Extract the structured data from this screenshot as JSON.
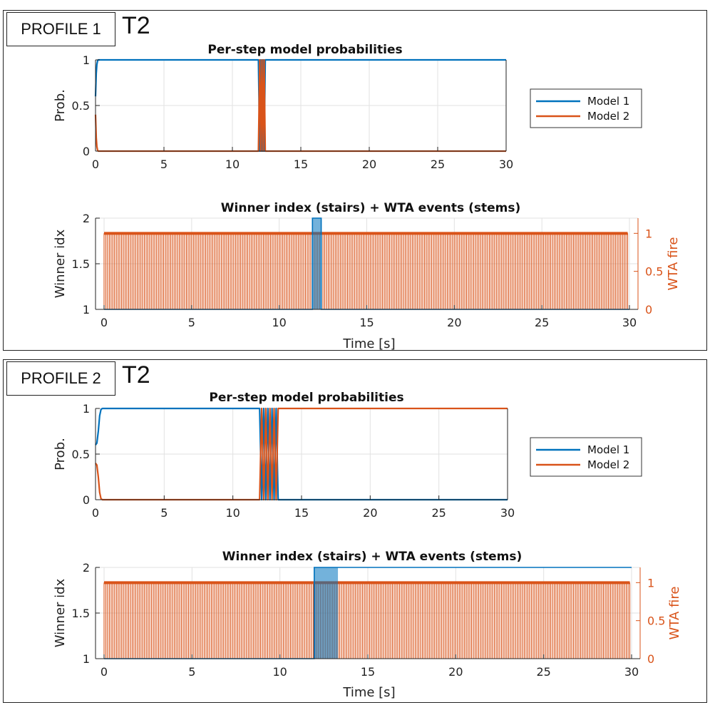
{
  "panels": [
    {
      "badge": "PROFILE 1",
      "tag": "T2"
    },
    {
      "badge": "PROFILE 2",
      "tag": "T2"
    }
  ],
  "colors": {
    "model1": "#0072bd",
    "model2": "#d95319",
    "grid": "#e2e2e2",
    "axis": "#222222",
    "overlap": "#6f6a7a"
  },
  "chart_data": [
    {
      "id": "p1-prob",
      "type": "line",
      "title": "Per-step model probabilities",
      "xlabel": "",
      "ylabel": "Prob.",
      "xlim": [
        0,
        30
      ],
      "ylim": [
        0,
        1
      ],
      "xticks": [
        0,
        5,
        10,
        15,
        20,
        25,
        30
      ],
      "yticks": [
        0,
        0.5,
        1
      ],
      "xtick_labels": [
        "0",
        "5",
        "10",
        "15",
        "20",
        "25",
        "30"
      ],
      "ytick_labels": [
        "0",
        "0.5",
        "1"
      ],
      "legend": [
        "Model 1",
        "Model 2"
      ],
      "legend_position": "right",
      "series": [
        {
          "name": "Model 1",
          "x": [
            0,
            0.05,
            0.1,
            0.15,
            0.2,
            0.3,
            11.9,
            12.0,
            12.08,
            12.16,
            12.24,
            12.32,
            12.4,
            30
          ],
          "y": [
            0.6,
            0.85,
            0.95,
            0.99,
            1,
            1,
            1,
            0,
            1,
            0,
            1,
            0,
            1,
            1
          ]
        },
        {
          "name": "Model 2",
          "x": [
            0,
            0.05,
            0.1,
            0.15,
            0.2,
            0.3,
            11.9,
            12.0,
            12.08,
            12.16,
            12.24,
            12.32,
            12.4,
            30
          ],
          "y": [
            0.4,
            0.15,
            0.05,
            0.01,
            0,
            0,
            0,
            1,
            0,
            1,
            0,
            1,
            0,
            0
          ]
        }
      ]
    },
    {
      "id": "p1-winner",
      "type": "stairs+stem",
      "title": "Winner index (stairs) + WTA events (stems)",
      "xlabel": "Time [s]",
      "ylabel": "Winner idx",
      "y2label": "WTA fire",
      "xlim": [
        0,
        30
      ],
      "ylim": [
        1,
        2
      ],
      "y2lim": [
        0,
        1.2
      ],
      "xticks": [
        0,
        5,
        10,
        15,
        20,
        25,
        30
      ],
      "yticks": [
        1,
        1.5,
        2
      ],
      "y2ticks": [
        0,
        0.5,
        1
      ],
      "xtick_labels": [
        "0",
        "5",
        "10",
        "15",
        "20",
        "25",
        "30"
      ],
      "ytick_labels": [
        "1",
        "1.5",
        "2"
      ],
      "y2tick_labels": [
        "0",
        "0.5",
        "1"
      ],
      "winner": {
        "x": [
          0,
          11.9,
          11.9,
          12.4,
          12.4,
          30
        ],
        "y": [
          1,
          1,
          2,
          2,
          1,
          1
        ]
      },
      "stems": {
        "start": 0,
        "end": 29.9,
        "step": 0.1,
        "value": 1
      }
    },
    {
      "id": "p2-prob",
      "type": "line",
      "title": "Per-step model probabilities",
      "xlabel": "",
      "ylabel": "Prob.",
      "xlim": [
        0,
        30
      ],
      "ylim": [
        0,
        1
      ],
      "xticks": [
        0,
        5,
        10,
        15,
        20,
        25,
        30
      ],
      "yticks": [
        0,
        0.5,
        1
      ],
      "xtick_labels": [
        "0",
        "5",
        "10",
        "15",
        "20",
        "25",
        "30"
      ],
      "ytick_labels": [
        "0",
        "0.5",
        "1"
      ],
      "legend": [
        "Model 1",
        "Model 2"
      ],
      "legend_position": "right",
      "series": [
        {
          "name": "Model 1",
          "x": [
            0,
            0.1,
            0.2,
            0.3,
            0.4,
            0.5,
            11.95,
            12.1,
            12.25,
            12.4,
            12.55,
            12.7,
            12.85,
            13.0,
            13.15,
            13.3,
            30
          ],
          "y": [
            0.6,
            0.62,
            0.75,
            0.92,
            0.99,
            1,
            1,
            0,
            1,
            0,
            1,
            0,
            1,
            0,
            1,
            0,
            0
          ]
        },
        {
          "name": "Model 2",
          "x": [
            0,
            0.1,
            0.2,
            0.3,
            0.4,
            0.5,
            11.95,
            12.1,
            12.25,
            12.4,
            12.55,
            12.7,
            12.85,
            13.0,
            13.15,
            13.3,
            30
          ],
          "y": [
            0.4,
            0.38,
            0.25,
            0.08,
            0.01,
            0,
            0,
            1,
            0,
            1,
            0,
            1,
            0,
            1,
            0,
            1,
            1
          ]
        }
      ]
    },
    {
      "id": "p2-winner",
      "type": "stairs+stem",
      "title": "Winner index (stairs) + WTA events (stems)",
      "xlabel": "Time [s]",
      "ylabel": "Winner idx",
      "y2label": "WTA fire",
      "xlim": [
        0,
        30
      ],
      "ylim": [
        1,
        2
      ],
      "y2lim": [
        0,
        1.2
      ],
      "xticks": [
        0,
        5,
        10,
        15,
        20,
        25,
        30
      ],
      "yticks": [
        1,
        1.5,
        2
      ],
      "y2ticks": [
        0,
        0.5,
        1
      ],
      "xtick_labels": [
        "0",
        "5",
        "10",
        "15",
        "20",
        "25",
        "30"
      ],
      "ytick_labels": [
        "1",
        "1.5",
        "2"
      ],
      "y2tick_labels": [
        "0",
        "0.5",
        "1"
      ],
      "winner": {
        "x": [
          0,
          11.95,
          11.95,
          13.3,
          13.3,
          30
        ],
        "y": [
          1,
          1,
          2,
          2,
          2,
          2
        ]
      },
      "winner_band": [
        11.95,
        13.3
      ],
      "stems": {
        "start": 0,
        "end": 29.9,
        "step": 0.1,
        "value": 1
      }
    }
  ]
}
